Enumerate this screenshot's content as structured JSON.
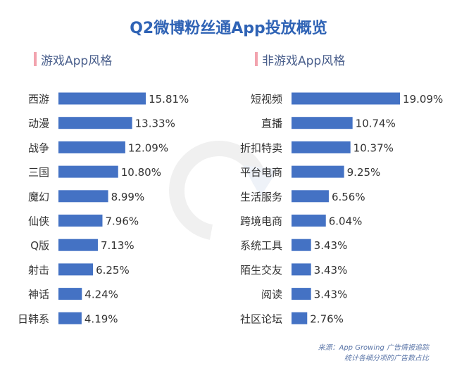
{
  "title": "Q2微博粉丝通App投放概览",
  "watermark": "AppGrowing",
  "footer": {
    "line1": "来源：App Growing 广告情报追踪",
    "line2": "统计各细分项的广告数占比"
  },
  "colors": {
    "bar": "#4472c4",
    "title": "#2f63b5",
    "accent": "#f2a3ae"
  },
  "chart_data": [
    {
      "type": "bar",
      "orientation": "horizontal",
      "title": "游戏App风格",
      "categories": [
        "西游",
        "动漫",
        "战争",
        "三国",
        "魔幻",
        "仙侠",
        "Q版",
        "射击",
        "神话",
        "日韩系"
      ],
      "values": [
        15.81,
        13.33,
        12.09,
        10.8,
        8.99,
        7.96,
        7.13,
        6.25,
        4.24,
        4.19
      ],
      "labels": [
        "15.81%",
        "13.33%",
        "12.09%",
        "10.80%",
        "8.99%",
        "7.96%",
        "7.13%",
        "6.25%",
        "4.24%",
        "4.19%"
      ]
    },
    {
      "type": "bar",
      "orientation": "horizontal",
      "title": "非游戏App风格",
      "categories": [
        "短视频",
        "直播",
        "折扣特卖",
        "平台电商",
        "生活服务",
        "跨境电商",
        "系统工具",
        "陌生交友",
        "阅读",
        "社区论坛"
      ],
      "values": [
        19.09,
        10.74,
        10.37,
        9.25,
        6.56,
        6.04,
        3.43,
        3.43,
        3.43,
        2.76
      ],
      "labels": [
        "19.09%",
        "10.74%",
        "10.37%",
        "9.25%",
        "6.56%",
        "6.04%",
        "3.43%",
        "3.43%",
        "3.43%",
        "2.76%"
      ]
    }
  ]
}
